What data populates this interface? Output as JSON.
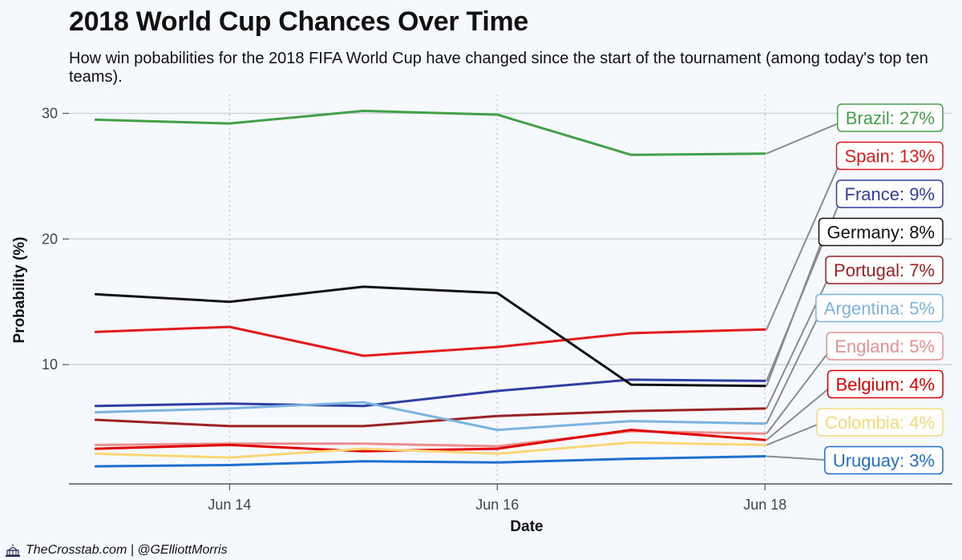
{
  "title": "2018 World Cup Chances Over Time",
  "subtitle": "How win pobabilities for the 2018 FIFA World Cup have changed since the start of the tournament (among today's top ten teams).",
  "caption": "TheCrosstab.com | @GElliottMorris",
  "chart_data": {
    "type": "line",
    "xlabel": "Date",
    "ylabel": "Probability (%)",
    "x": [
      "Jun 13",
      "Jun 14",
      "Jun 15",
      "Jun 16",
      "Jun 17",
      "Jun 18"
    ],
    "x_ticks": [
      "Jun 14",
      "Jun 16",
      "Jun 18"
    ],
    "y_ticks": [
      10,
      20,
      30
    ],
    "xlim": [
      "Jun 12.8",
      "Jun 19.4"
    ],
    "ylim": [
      0.5,
      31.5
    ],
    "grid": true,
    "series": [
      {
        "name": "Brazil",
        "label": "Brazil: 27%",
        "color": "#43a047",
        "values": [
          29.5,
          29.2,
          30.2,
          29.9,
          26.7,
          26.8
        ]
      },
      {
        "name": "Spain",
        "label": "Spain: 13%",
        "color": "#e31a1c",
        "values": [
          12.6,
          13.0,
          10.7,
          11.4,
          12.5,
          12.8
        ]
      },
      {
        "name": "France",
        "label": "France: 9%",
        "color": "#303f9f",
        "values": [
          6.7,
          6.9,
          6.7,
          7.9,
          8.8,
          8.7
        ]
      },
      {
        "name": "Germany",
        "label": "Germany: 8%",
        "color": "#111111",
        "values": [
          15.6,
          15.0,
          16.2,
          15.7,
          8.4,
          8.3
        ]
      },
      {
        "name": "Portugal",
        "label": "Portugal: 7%",
        "color": "#9b2222",
        "values": [
          5.6,
          5.1,
          5.1,
          5.9,
          6.3,
          6.5
        ]
      },
      {
        "name": "Argentina",
        "label": "Argentina: 5%",
        "color": "#7ab3e0",
        "values": [
          6.2,
          6.5,
          7.0,
          4.8,
          5.5,
          5.3
        ]
      },
      {
        "name": "England",
        "label": "England: 5%",
        "color": "#ea8e8e",
        "values": [
          3.6,
          3.7,
          3.7,
          3.5,
          4.7,
          4.5
        ]
      },
      {
        "name": "Belgium",
        "label": "Belgium: 4%",
        "color": "#e00000",
        "values": [
          3.3,
          3.6,
          3.1,
          3.3,
          4.8,
          4.0
        ]
      },
      {
        "name": "Colombia",
        "label": "Colombia: 4%",
        "color": "#f9d777",
        "values": [
          2.9,
          2.6,
          3.3,
          2.9,
          3.8,
          3.6
        ]
      },
      {
        "name": "Uruguay",
        "label": "Uruguay: 3%",
        "color": "#1f6fcf",
        "values": [
          1.9,
          2.0,
          2.3,
          2.2,
          2.5,
          2.7
        ]
      }
    ]
  }
}
